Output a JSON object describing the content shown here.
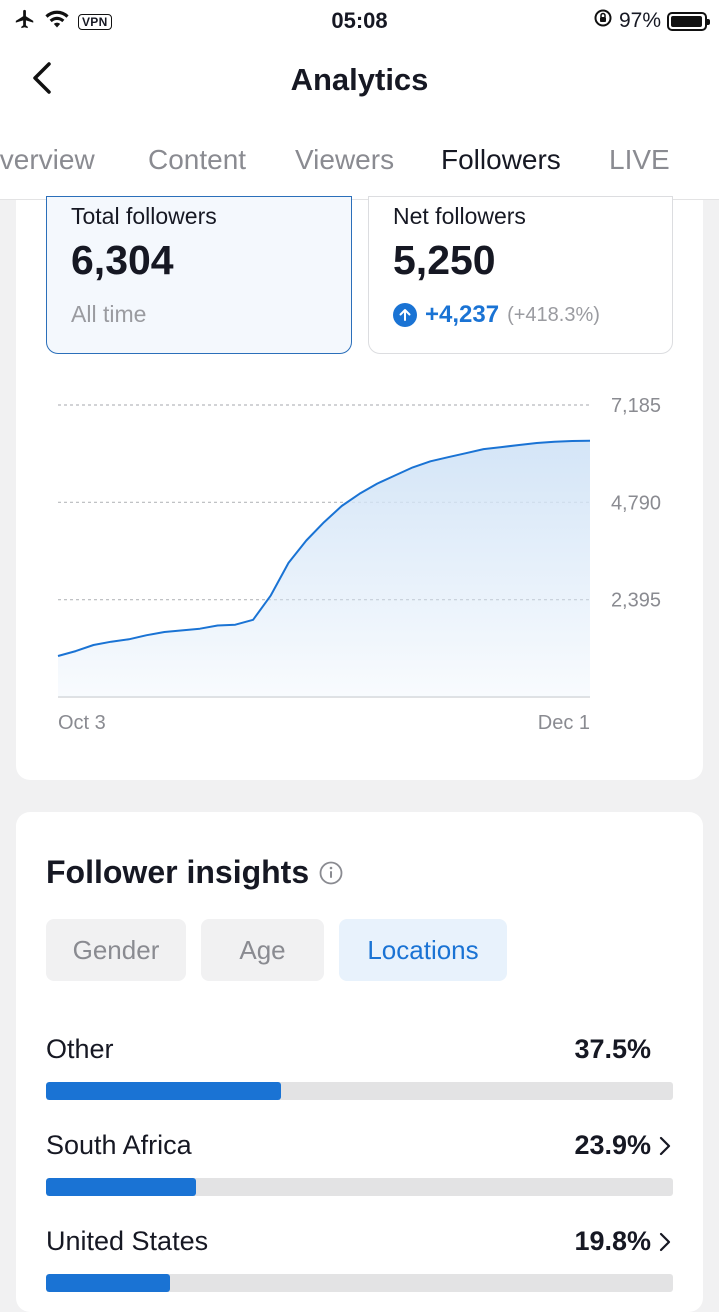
{
  "status_bar": {
    "vpn": "VPN",
    "time": "05:08",
    "battery": "97%",
    "battery_level": 0.97
  },
  "header": {
    "title": "Analytics"
  },
  "tabs": [
    {
      "label": "Overview",
      "active": false
    },
    {
      "label": "Content",
      "active": false
    },
    {
      "label": "Viewers",
      "active": false
    },
    {
      "label": "Followers",
      "active": true
    },
    {
      "label": "LIVE",
      "active": false
    }
  ],
  "stats": {
    "total": {
      "label": "Total followers",
      "value": "6,304",
      "sub": "All time"
    },
    "net": {
      "label": "Net followers",
      "value": "5,250",
      "change": "+4,237",
      "change_pct": "(+418.3%)"
    }
  },
  "chart_data": {
    "type": "area",
    "y_ticks": [
      "7,185",
      "4,790",
      "2,395"
    ],
    "x_labels": [
      "Oct 3",
      "Dec 1"
    ],
    "ylim": [
      0,
      7185
    ],
    "grid": true,
    "x": [
      "Oct 3",
      "Oct 5",
      "Oct 7",
      "Oct 9",
      "Oct 11",
      "Oct 13",
      "Oct 15",
      "Oct 17",
      "Oct 19",
      "Oct 21",
      "Oct 23",
      "Oct 25",
      "Oct 27",
      "Oct 29",
      "Oct 31",
      "Nov 2",
      "Nov 4",
      "Nov 6",
      "Nov 8",
      "Nov 10",
      "Nov 12",
      "Nov 14",
      "Nov 16",
      "Nov 18",
      "Nov 20",
      "Nov 22",
      "Nov 24",
      "Nov 26",
      "Nov 28",
      "Nov 30",
      "Dec 1"
    ],
    "values": [
      1010,
      1130,
      1280,
      1360,
      1420,
      1520,
      1600,
      1640,
      1680,
      1760,
      1780,
      1900,
      2500,
      3300,
      3850,
      4300,
      4700,
      5000,
      5250,
      5450,
      5650,
      5800,
      5900,
      6000,
      6100,
      6150,
      6200,
      6250,
      6280,
      6300,
      6304
    ],
    "line_color": "#1a73d4",
    "fill_color": "#d4e5f7"
  },
  "insights": {
    "title": "Follower insights",
    "pills": [
      {
        "label": "Gender",
        "active": false
      },
      {
        "label": "Age",
        "active": false
      },
      {
        "label": "Locations",
        "active": true
      }
    ],
    "locations": [
      {
        "name": "Other",
        "pct": "37.5%",
        "value": 37.5,
        "has_chevron": false
      },
      {
        "name": "South Africa",
        "pct": "23.9%",
        "value": 23.9,
        "has_chevron": true
      },
      {
        "name": "United States",
        "pct": "19.8%",
        "value": 19.8,
        "has_chevron": true
      }
    ]
  },
  "colors": {
    "accent": "#1a73d4",
    "text": "#161823",
    "muted": "#8a8b91"
  }
}
